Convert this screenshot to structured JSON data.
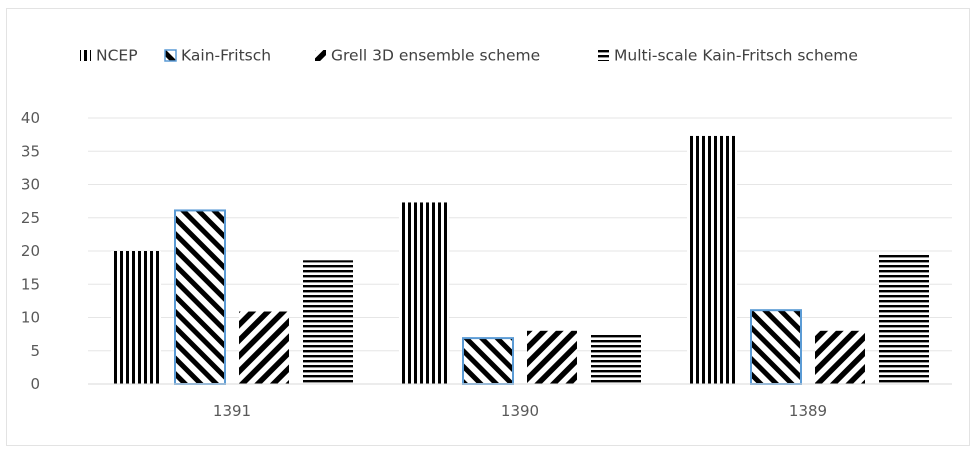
{
  "chart_data": {
    "type": "bar",
    "title": "",
    "xlabel": "",
    "ylabel": "",
    "categories": [
      "1391",
      "1390",
      "1389"
    ],
    "ylim": [
      0,
      40
    ],
    "yticks": [
      0,
      5,
      10,
      15,
      20,
      25,
      30,
      35,
      40
    ],
    "grid": true,
    "legend_position": "top",
    "series": [
      {
        "name": "NCEP",
        "values": [
          20,
          27.3,
          37.3
        ],
        "pattern": "vertical-lines",
        "color": "#000000"
      },
      {
        "name": "Kain-Fritsch",
        "values": [
          26.1,
          6.9,
          11.1
        ],
        "pattern": "backslash-diagonal",
        "color": "#000000",
        "border": "#5b9bd5"
      },
      {
        "name": "Grell 3D ensemble scheme",
        "values": [
          10.9,
          8.0,
          8.0
        ],
        "pattern": "forward-diagonal",
        "color": "#000000"
      },
      {
        "name": "Multi-scale Kain-Fritsch scheme",
        "values": [
          18.6,
          7.4,
          19.5
        ],
        "pattern": "horizontal-lines",
        "color": "#000000"
      }
    ]
  }
}
